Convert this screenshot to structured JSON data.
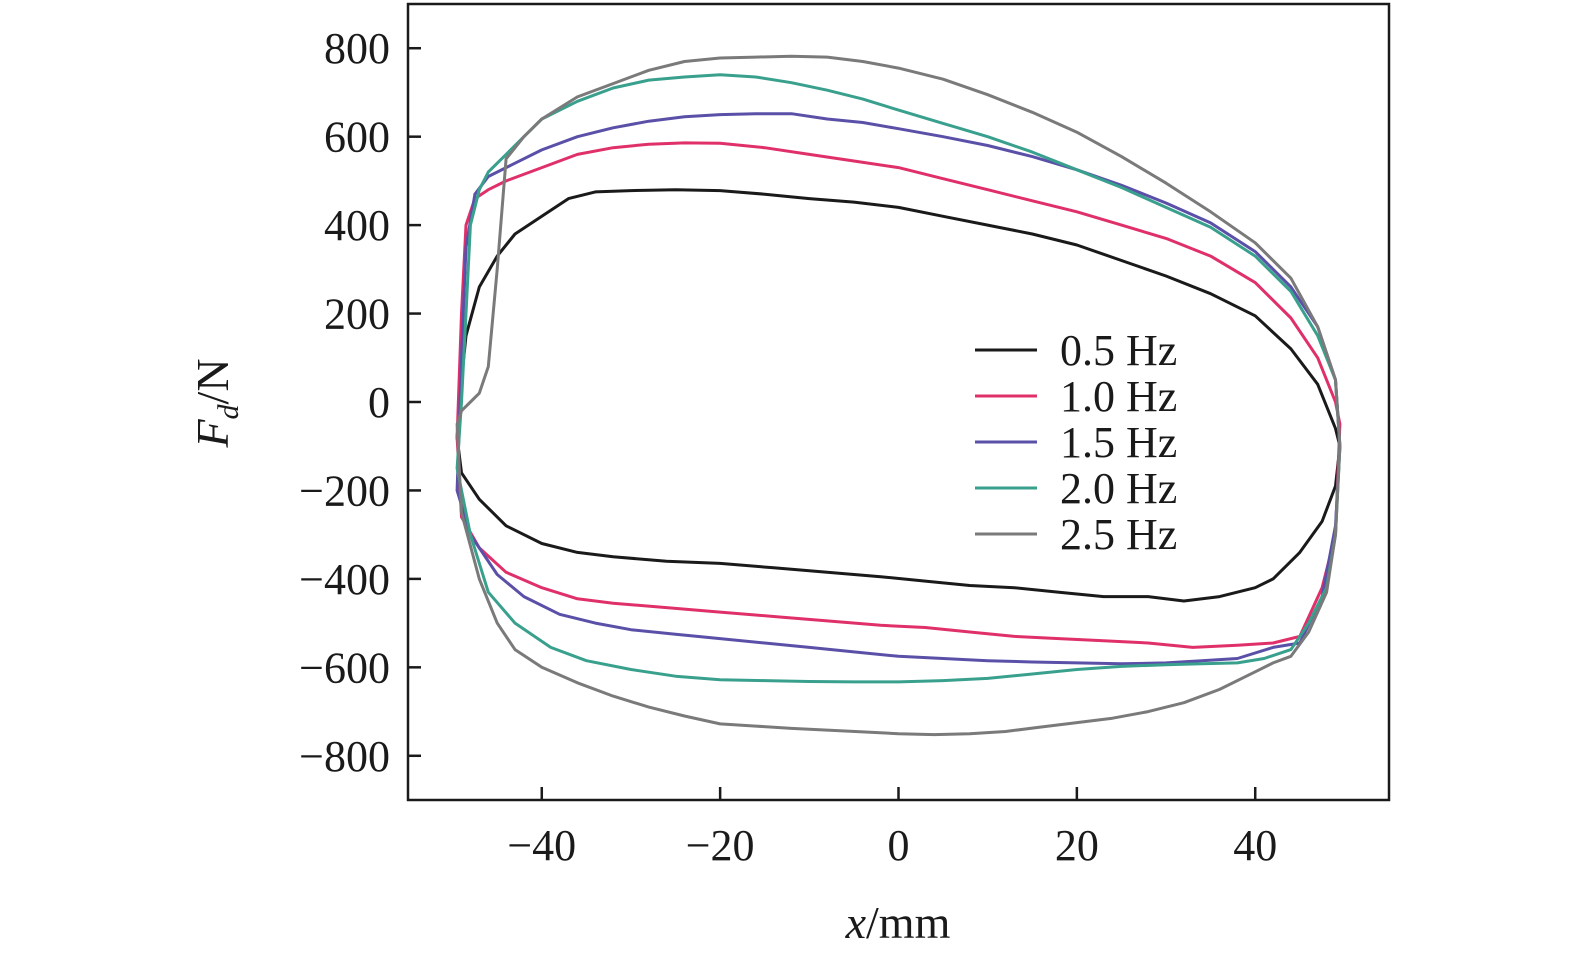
{
  "chart_data": {
    "type": "line",
    "title": "",
    "xlabel": {
      "var": "x",
      "unit": "/mm"
    },
    "ylabel": {
      "var": "F",
      "sub": "d",
      "unit": "/N"
    },
    "xlim": [
      -55,
      55
    ],
    "ylim": [
      -900,
      900
    ],
    "xticks": [
      -40,
      -20,
      0,
      20,
      40
    ],
    "yticks": [
      800,
      600,
      400,
      200,
      0,
      -200,
      -400,
      -600,
      -800
    ],
    "grid": false,
    "legend_position": "center-right",
    "series": [
      {
        "name": "0.5 Hz",
        "color": "#1a1a1a",
        "x": [
          -49.5,
          -49,
          -48.5,
          -47,
          -45,
          -43,
          -40,
          -37,
          -34,
          -30,
          -25,
          -20,
          -15,
          -10,
          -5,
          0,
          5,
          10,
          15,
          20,
          25,
          30,
          35,
          40,
          44,
          47,
          49,
          49.5,
          49,
          47.5,
          45,
          42,
          40,
          36,
          32,
          28,
          23,
          18,
          13,
          8,
          3,
          -2,
          -8,
          -14,
          -20,
          -26,
          -32,
          -36,
          -40,
          -44,
          -47,
          -49,
          -49.5
        ],
        "y": [
          -80,
          50,
          150,
          260,
          330,
          380,
          420,
          460,
          475,
          478,
          480,
          478,
          470,
          460,
          452,
          440,
          420,
          400,
          380,
          355,
          320,
          285,
          245,
          195,
          120,
          40,
          -60,
          -100,
          -190,
          -270,
          -340,
          -400,
          -420,
          -440,
          -450,
          -440,
          -440,
          -430,
          -420,
          -415,
          -405,
          -395,
          -385,
          -375,
          -365,
          -360,
          -350,
          -340,
          -320,
          -280,
          -220,
          -160,
          -80
        ]
      },
      {
        "name": "1.0 Hz",
        "color": "#e0306a",
        "x": [
          -49.5,
          -49,
          -48.5,
          -47.5,
          -46,
          -44,
          -40,
          -36,
          -32,
          -28,
          -24,
          -20,
          -15,
          -10,
          -5,
          0,
          5,
          10,
          15,
          20,
          25,
          30,
          35,
          40,
          44,
          47,
          49,
          49.5,
          49,
          47.5,
          45,
          42,
          38,
          33,
          28,
          23,
          18,
          13,
          8,
          3,
          -2,
          -8,
          -14,
          -20,
          -26,
          -32,
          -36,
          -40,
          -44,
          -47,
          -49,
          -49.5
        ],
        "y": [
          -80,
          200,
          400,
          460,
          480,
          500,
          530,
          560,
          575,
          583,
          586,
          585,
          575,
          560,
          545,
          530,
          505,
          480,
          455,
          430,
          400,
          370,
          330,
          270,
          190,
          100,
          0,
          -50,
          -300,
          -420,
          -530,
          -545,
          -550,
          -555,
          -545,
          -540,
          -535,
          -530,
          -520,
          -510,
          -505,
          -495,
          -485,
          -475,
          -465,
          -455,
          -445,
          -420,
          -385,
          -330,
          -260,
          -80
        ]
      },
      {
        "name": "1.5 Hz",
        "color": "#5a50a8",
        "x": [
          -49.5,
          -49,
          -48.5,
          -47.5,
          -46,
          -43,
          -40,
          -36,
          -32,
          -28,
          -24,
          -20,
          -16,
          -12,
          -8,
          -4,
          0,
          5,
          10,
          15,
          20,
          25,
          30,
          35,
          40,
          44,
          47,
          49,
          49.5,
          49,
          47.5,
          45,
          42,
          38,
          34,
          30,
          25,
          20,
          15,
          10,
          5,
          0,
          -5,
          -10,
          -15,
          -20,
          -25,
          -30,
          -34,
          -38,
          -42,
          -45,
          -48,
          -49.5
        ],
        "y": [
          -200,
          100,
          350,
          470,
          510,
          540,
          570,
          600,
          620,
          635,
          645,
          650,
          652,
          652,
          640,
          632,
          618,
          600,
          580,
          555,
          525,
          490,
          450,
          405,
          340,
          260,
          170,
          50,
          -100,
          -280,
          -440,
          -545,
          -555,
          -580,
          -585,
          -590,
          -592,
          -590,
          -588,
          -585,
          -580,
          -575,
          -565,
          -555,
          -545,
          -535,
          -525,
          -515,
          -500,
          -480,
          -440,
          -390,
          -300,
          -200
        ]
      },
      {
        "name": "2.0 Hz",
        "color": "#3aa08e",
        "x": [
          -49.5,
          -49,
          -48.5,
          -48,
          -47,
          -46,
          -44,
          -42,
          -40,
          -36,
          -32,
          -28,
          -24,
          -20,
          -16,
          -12,
          -8,
          -4,
          0,
          5,
          10,
          15,
          20,
          25,
          30,
          35,
          40,
          44,
          47,
          49,
          49.5,
          49,
          48,
          46,
          44,
          41,
          38,
          34,
          30,
          25,
          20,
          15,
          10,
          5,
          0,
          -5,
          -10,
          -15,
          -20,
          -25,
          -30,
          -35,
          -39,
          -43,
          -46,
          -48,
          -49.5
        ],
        "y": [
          -150,
          0,
          200,
          400,
          480,
          520,
          560,
          600,
          640,
          680,
          710,
          728,
          735,
          740,
          735,
          722,
          705,
          685,
          660,
          630,
          600,
          565,
          525,
          485,
          440,
          395,
          330,
          250,
          150,
          50,
          -100,
          -300,
          -420,
          -500,
          -560,
          -580,
          -590,
          -592,
          -594,
          -598,
          -605,
          -615,
          -625,
          -630,
          -633,
          -633,
          -632,
          -630,
          -628,
          -620,
          -605,
          -585,
          -555,
          -500,
          -430,
          -300,
          -150
        ]
      },
      {
        "name": "2.5 Hz",
        "color": "#7a7a7a",
        "x": [
          -49.5,
          -49,
          -48,
          -47,
          -46,
          -45,
          -44,
          -42,
          -40,
          -36,
          -32,
          -28,
          -24,
          -20,
          -16,
          -12,
          -8,
          -4,
          0,
          5,
          10,
          15,
          20,
          25,
          30,
          35,
          40,
          44,
          47,
          49,
          49.5,
          49,
          48,
          46,
          44,
          42,
          40,
          36,
          32,
          28,
          24,
          20,
          16,
          12,
          8,
          4,
          0,
          -4,
          -8,
          -12,
          -16,
          -20,
          -24,
          -28,
          -32,
          -36,
          -40,
          -43,
          -45,
          -47,
          -49,
          -49.5
        ],
        "y": [
          -50,
          -20,
          0,
          20,
          80,
          300,
          550,
          600,
          640,
          690,
          720,
          750,
          770,
          778,
          780,
          782,
          780,
          770,
          755,
          730,
          695,
          655,
          610,
          555,
          495,
          430,
          360,
          280,
          170,
          50,
          -100,
          -300,
          -430,
          -520,
          -575,
          -590,
          -610,
          -650,
          -680,
          -700,
          -715,
          -725,
          -735,
          -745,
          -750,
          -752,
          -750,
          -746,
          -742,
          -738,
          -733,
          -728,
          -710,
          -690,
          -665,
          -635,
          -600,
          -560,
          -500,
          -400,
          -250,
          -50
        ]
      }
    ]
  }
}
